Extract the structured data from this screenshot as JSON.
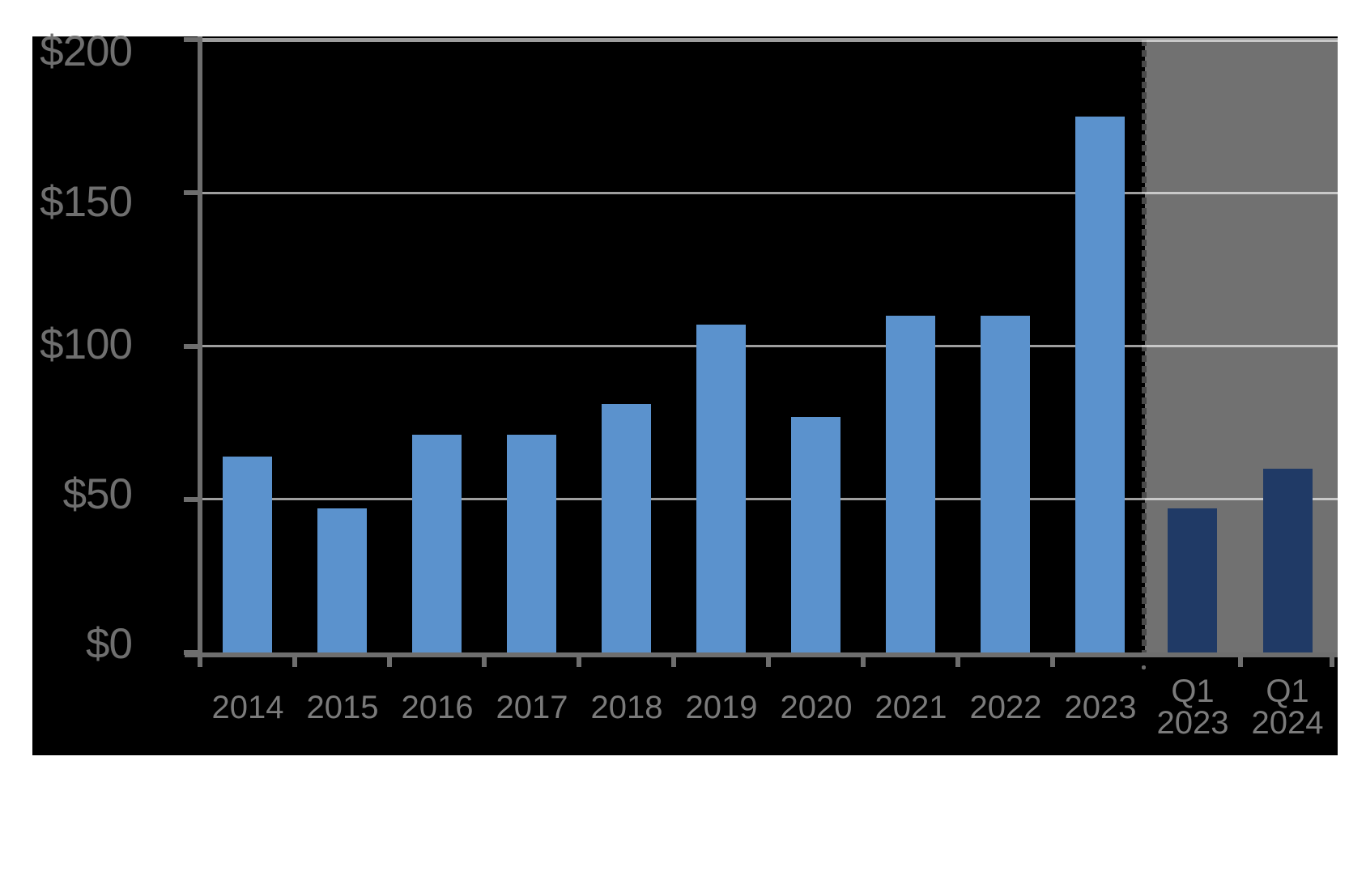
{
  "colors": {
    "page_background": "#ffffff",
    "plot_background": "#000000",
    "forecast_region": "#717171",
    "annual_bar": "#5b92cd",
    "quarterly_bar": "#203a66",
    "axis": "#6e6e6e",
    "gridline": "rgba(255,255,255,0.62)",
    "y_label_text": "#6f6f6f",
    "x_label_text": "#7b7b7b",
    "divider_dash": "#4a4a4a",
    "divider_dot": "#6b6b6b"
  },
  "chart_data": {
    "type": "bar",
    "ylim": [
      0,
      200
    ],
    "grid": true,
    "legend": "none",
    "y_ticks": [
      {
        "value": 0,
        "label": "$0"
      },
      {
        "value": 50,
        "label": "$50"
      },
      {
        "value": 100,
        "label": "$100"
      },
      {
        "value": 150,
        "label": "$150"
      },
      {
        "value": 200,
        "label": "$200"
      }
    ],
    "series": [
      {
        "name": "annual",
        "color": "#5b92cd",
        "points": [
          {
            "label": "2014",
            "value": 64
          },
          {
            "label": "2015",
            "value": 47
          },
          {
            "label": "2016",
            "value": 71
          },
          {
            "label": "2017",
            "value": 71
          },
          {
            "label": "2018",
            "value": 81
          },
          {
            "label": "2019",
            "value": 107
          },
          {
            "label": "2020",
            "value": 77
          },
          {
            "label": "2021",
            "value": 110
          },
          {
            "label": "2022",
            "value": 110
          },
          {
            "label": "2023",
            "value": 175
          }
        ]
      },
      {
        "name": "quarterly",
        "color": "#203a66",
        "points": [
          {
            "label": "Q1 2023",
            "value": 47
          },
          {
            "label": "Q1 2024",
            "value": 60
          }
        ]
      }
    ],
    "x_tick_labels": [
      [
        "2014"
      ],
      [
        "2015"
      ],
      [
        "2016"
      ],
      [
        "2017"
      ],
      [
        "2018"
      ],
      [
        "2019"
      ],
      [
        "2020"
      ],
      [
        "2021"
      ],
      [
        "2022"
      ],
      [
        "2023"
      ],
      [
        "Q1",
        "2023"
      ],
      [
        "Q1",
        "2024"
      ]
    ],
    "forecast_region": {
      "covers": [
        "Q1 2023",
        "Q1 2024"
      ],
      "background": "#717171",
      "divider_style": "dotted-vertical-line"
    }
  }
}
